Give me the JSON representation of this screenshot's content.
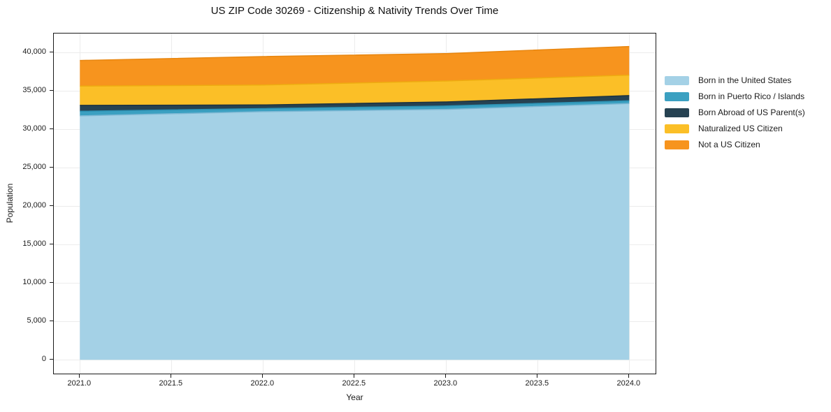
{
  "title": "US ZIP Code 30269 - Citizenship & Nativity Trends Over Time",
  "chart_data": {
    "type": "area",
    "stacked": true,
    "title": "US ZIP Code 30269 - Citizenship & Nativity Trends Over Time",
    "xlabel": "Year",
    "ylabel": "Population",
    "x": [
      2021,
      2022,
      2023,
      2024
    ],
    "series": [
      {
        "name": "Born in the United States",
        "color": "#A4D1E6",
        "edge_color": "#7EB8D4",
        "values": [
          31700,
          32250,
          32550,
          33300
        ]
      },
      {
        "name": "Born in Puerto Rico / Islands",
        "color": "#3BA0C1",
        "edge_color": "#2C90B2",
        "values": [
          600,
          400,
          430,
          360
        ]
      },
      {
        "name": "Born Abroad of US Parent(s)",
        "color": "#264252",
        "edge_color": "#1C3240",
        "values": [
          760,
          470,
          530,
          670
        ]
      },
      {
        "name": "Naturalized US Citizen",
        "color": "#FBBF27",
        "edge_color": "#EEAC10",
        "values": [
          2510,
          2590,
          2720,
          2660
        ]
      },
      {
        "name": "Not a US Citizen",
        "color": "#F7941E",
        "edge_color": "#E8860F",
        "values": [
          3330,
          3700,
          3570,
          3720
        ]
      }
    ],
    "stack_totals": [
      38900,
      39410,
      39800,
      40710
    ],
    "xticks": [
      {
        "value": 2021.0,
        "label": "2021.0"
      },
      {
        "value": 2021.5,
        "label": "2021.5"
      },
      {
        "value": 2022.0,
        "label": "2022.0"
      },
      {
        "value": 2022.5,
        "label": "2022.5"
      },
      {
        "value": 2023.0,
        "label": "2023.0"
      },
      {
        "value": 2023.5,
        "label": "2023.5"
      },
      {
        "value": 2024.0,
        "label": "2024.0"
      }
    ],
    "yticks": [
      {
        "value": 0,
        "label": "0"
      },
      {
        "value": 5000,
        "label": "5,000"
      },
      {
        "value": 10000,
        "label": "10,000"
      },
      {
        "value": 15000,
        "label": "15,000"
      },
      {
        "value": 20000,
        "label": "20,000"
      },
      {
        "value": 25000,
        "label": "25,000"
      },
      {
        "value": 30000,
        "label": "30,000"
      },
      {
        "value": 35000,
        "label": "35,000"
      },
      {
        "value": 40000,
        "label": "40,000"
      }
    ],
    "xlim": [
      2020.86,
      2024.15
    ],
    "ylim": [
      -1970,
      42400
    ],
    "grid": true,
    "legend_position": "right",
    "colors": {
      "grid": "#ececec",
      "spine": "#1a1a1a",
      "text": "#1a1a1a",
      "background": "#ffffff"
    }
  }
}
